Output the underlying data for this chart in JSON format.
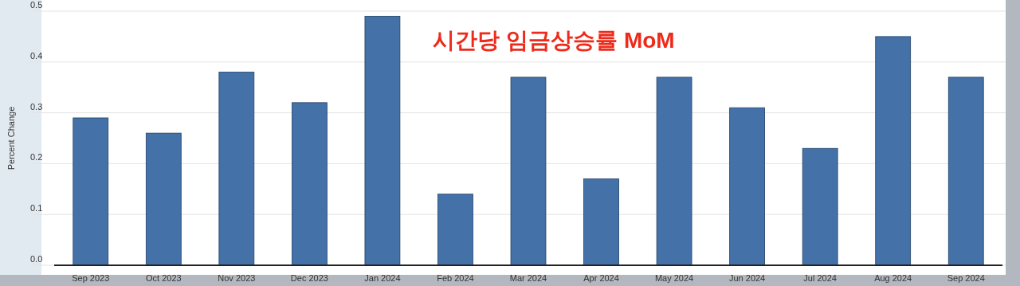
{
  "chart_data": {
    "type": "bar",
    "title": "시간당 임금상승률 MoM",
    "ylabel": "Percent Change",
    "categories": [
      "Sep 2023",
      "Oct 2023",
      "Nov 2023",
      "Dec 2023",
      "Jan 2024",
      "Feb 2024",
      "Mar 2024",
      "Apr 2024",
      "May 2024",
      "Jun 2024",
      "Jul 2024",
      "Aug 2024",
      "Sep 2024"
    ],
    "values": [
      0.29,
      0.26,
      0.38,
      0.32,
      0.49,
      0.14,
      0.37,
      0.17,
      0.37,
      0.31,
      0.23,
      0.45,
      0.37
    ],
    "color": "#4472a8",
    "ylim": [
      0,
      0.5
    ],
    "yticks": [
      {
        "value": 0,
        "label": "0.0"
      },
      0.1,
      0.2,
      0.3,
      0.4,
      0.5
    ],
    "grid": "y"
  }
}
